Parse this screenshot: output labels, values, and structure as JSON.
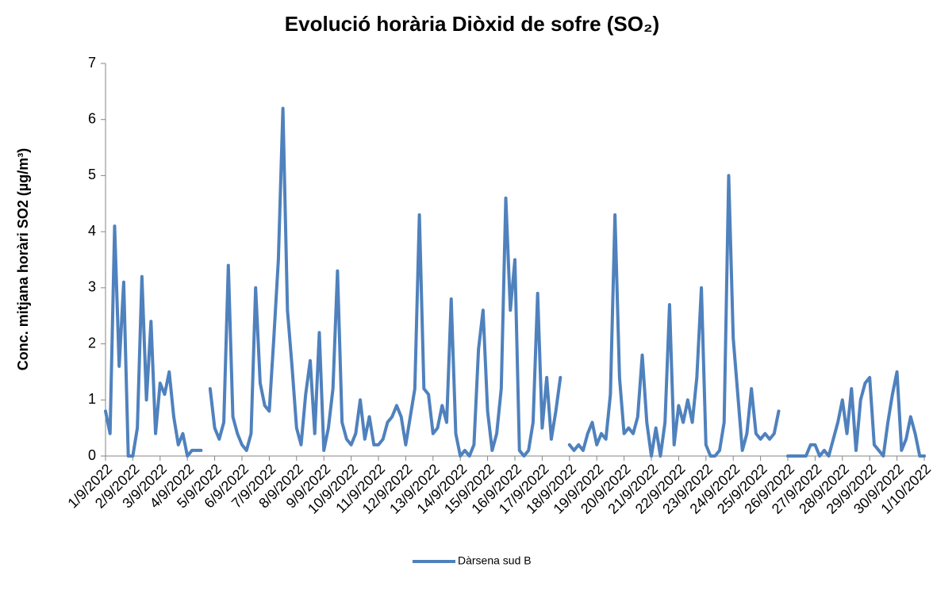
{
  "chart_data": {
    "type": "line",
    "title": "Evolució horària Diòxid de sofre (SO₂)",
    "y_label": "Conc. mitjana horàri SO2 (µg/m³)",
    "categories": [
      "1/9/2022",
      null,
      null,
      null,
      null,
      null,
      "2/9/2022",
      null,
      null,
      null,
      null,
      null,
      "3/9/2022",
      null,
      null,
      null,
      null,
      null,
      "4/9/2022",
      null,
      null,
      null,
      null,
      null,
      "5/9/2022",
      null,
      null,
      null,
      null,
      null,
      "6/9/2022",
      null,
      null,
      null,
      null,
      null,
      "7/9/2022",
      null,
      null,
      null,
      null,
      null,
      "8/9/2022",
      null,
      null,
      null,
      null,
      null,
      "9/9/2022",
      null,
      null,
      null,
      null,
      null,
      "10/9/2022",
      null,
      null,
      null,
      null,
      null,
      "11/9/2022",
      null,
      null,
      null,
      null,
      null,
      "12/9/2022",
      null,
      null,
      null,
      null,
      null,
      "13/9/2022",
      null,
      null,
      null,
      null,
      null,
      "14/9/2022",
      null,
      null,
      null,
      null,
      null,
      "15/9/2022",
      null,
      null,
      null,
      null,
      null,
      "16/9/2022",
      null,
      null,
      null,
      null,
      null,
      "17/9/2022",
      null,
      null,
      null,
      null,
      null,
      "18/9/2022",
      null,
      null,
      null,
      null,
      null,
      "19/9/2022",
      null,
      null,
      null,
      null,
      null,
      "20/9/2022",
      null,
      null,
      null,
      null,
      null,
      "21/9/2022",
      null,
      null,
      null,
      null,
      null,
      "22/9/2022",
      null,
      null,
      null,
      null,
      null,
      "23/9/2022",
      null,
      null,
      null,
      null,
      null,
      "24/9/2022",
      null,
      null,
      null,
      null,
      null,
      "25/9/2022",
      null,
      null,
      null,
      null,
      null,
      "26/9/2022",
      null,
      null,
      null,
      null,
      null,
      "27/9/2022",
      null,
      null,
      null,
      null,
      null,
      "28/9/2022",
      null,
      null,
      null,
      null,
      null,
      "29/9/2022",
      null,
      null,
      null,
      null,
      null,
      "30/9/2022",
      null,
      null,
      null,
      null,
      null,
      "1/10/2022"
    ],
    "series": [
      {
        "name": "Dàrsena sud B",
        "color": "#4f81bd",
        "values": [
          0.8,
          0.4,
          4.1,
          1.6,
          3.1,
          0,
          0,
          0.5,
          3.2,
          1.0,
          2.4,
          0.4,
          1.3,
          1.1,
          1.5,
          0.7,
          0.2,
          0.4,
          0,
          0.1,
          0.1,
          0.1,
          null,
          1.2,
          0.5,
          0.3,
          0.6,
          3.4,
          0.7,
          0.4,
          0.2,
          0.1,
          0.4,
          3.0,
          1.3,
          0.9,
          0.8,
          2.1,
          3.5,
          6.2,
          2.6,
          1.6,
          0.5,
          0.2,
          1.1,
          1.7,
          0.4,
          2.2,
          0.1,
          0.5,
          1.2,
          3.3,
          0.6,
          0.3,
          0.2,
          0.4,
          1.0,
          0.3,
          0.7,
          0.2,
          0.2,
          0.3,
          0.6,
          0.7,
          0.9,
          0.7,
          0.2,
          0.7,
          1.2,
          4.3,
          1.2,
          1.1,
          0.4,
          0.5,
          0.9,
          0.6,
          2.8,
          0.4,
          0,
          0.1,
          0,
          0.2,
          1.9,
          2.6,
          0.8,
          0.1,
          0.4,
          1.2,
          4.6,
          2.6,
          3.5,
          0.1,
          0,
          0.1,
          0.6,
          2.9,
          0.5,
          1.4,
          0.3,
          0.8,
          1.4,
          null,
          0.2,
          0.1,
          0.2,
          0.1,
          0.4,
          0.6,
          0.2,
          0.4,
          0.3,
          1.1,
          4.3,
          1.4,
          0.4,
          0.5,
          0.4,
          0.7,
          1.8,
          0.6,
          0,
          0.5,
          0,
          0.6,
          2.7,
          0.2,
          0.9,
          0.6,
          1.0,
          0.6,
          1.4,
          3.0,
          0.2,
          0,
          0,
          0.1,
          0.6,
          5.0,
          2.1,
          1.1,
          0.1,
          0.4,
          1.2,
          0.4,
          0.3,
          0.4,
          0.3,
          0.4,
          0.8,
          null,
          0,
          0,
          0,
          0,
          0,
          0.2,
          0.2,
          0,
          0.1,
          0,
          0.3,
          0.6,
          1.0,
          0.4,
          1.2,
          0.1,
          1.0,
          1.3,
          1.4,
          0.2,
          0.1,
          0,
          0.6,
          1.1,
          1.5,
          0.1,
          0.3,
          0.7,
          0.4,
          0,
          0
        ]
      }
    ],
    "ylim": [
      0,
      7
    ],
    "yticks": [
      0,
      1,
      2,
      3,
      4,
      5,
      6,
      7
    ]
  }
}
